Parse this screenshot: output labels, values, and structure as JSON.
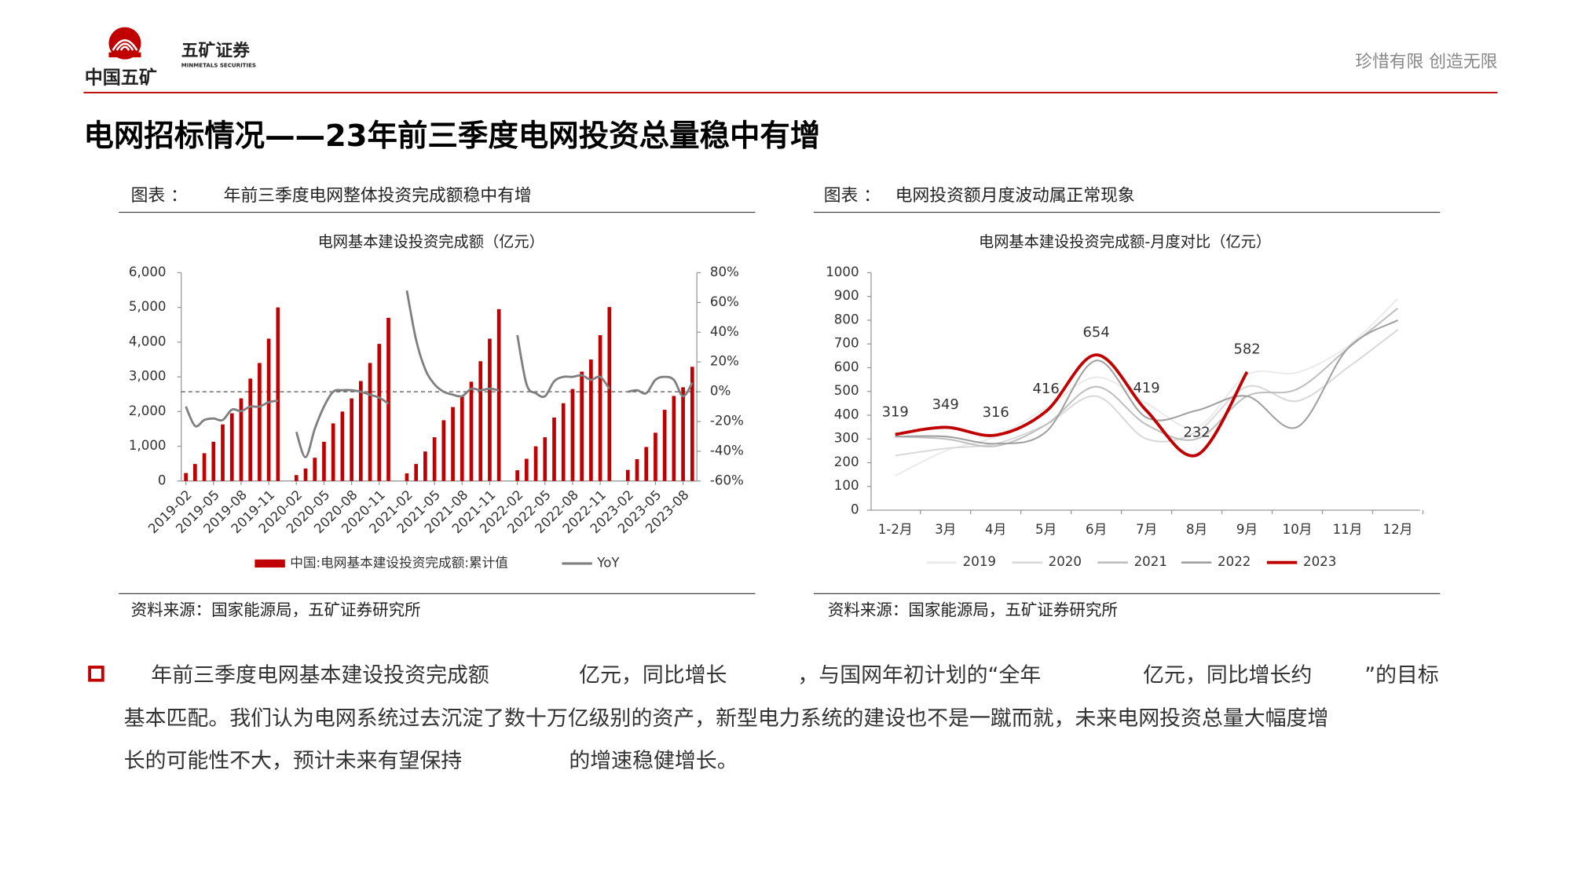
{
  "header": {
    "logo_text": "中国五矿",
    "brand": "五矿证券",
    "brand_en": "MINMETALS SECURITIES",
    "slogan": "珍惜有限  创造无限"
  },
  "title": "电网招标情况——23年前三季度电网投资总量稳中有增",
  "figures": [
    {
      "label": "图表 ：",
      "caption": "年前三季度电网整体投资完成额稳中有增",
      "source": "资料来源：国家能源局，五矿证券研究所"
    },
    {
      "label": "图表 ：",
      "caption": "电网投资额月度波动属正常现象",
      "source": "资料来源：国家能源局，五矿证券研究所"
    }
  ],
  "chart_data": [
    {
      "type": "bar",
      "title": "电网基本建设投资完成额（亿元）",
      "categories": [
        "2019-02",
        null,
        null,
        "2019-05",
        null,
        null,
        "2019-08",
        null,
        null,
        "2019-11",
        null,
        null,
        "2020-02",
        null,
        null,
        "2020-05",
        null,
        null,
        "2020-08",
        null,
        null,
        "2020-11",
        null,
        null,
        "2021-02",
        null,
        null,
        "2021-05",
        null,
        null,
        "2021-08",
        null,
        null,
        "2021-11",
        null,
        null,
        "2022-02",
        null,
        null,
        "2022-05",
        null,
        null,
        "2022-08",
        null,
        null,
        "2022-11",
        null,
        null,
        "2023-02",
        null,
        null,
        "2023-05",
        null,
        null,
        "2023-08",
        null
      ],
      "series": [
        {
          "name": "中国:电网基本建设投资完成额:累计值",
          "type": "bar",
          "color": "#c00000",
          "values": [
            230,
            490,
            800,
            1130,
            1630,
            1950,
            2380,
            2950,
            3400,
            4100,
            5000,
            null,
            170,
            360,
            670,
            1130,
            1660,
            2000,
            2380,
            2880,
            3400,
            3950,
            4700,
            null,
            220,
            490,
            850,
            1260,
            1750,
            2130,
            2440,
            2860,
            3450,
            4100,
            4950,
            null,
            310,
            640,
            1000,
            1260,
            1830,
            2240,
            2650,
            3150,
            3500,
            4200,
            5010,
            null,
            320,
            630,
            980,
            1390,
            2050,
            2450,
            2700,
            3290
          ]
        },
        {
          "name": "YoY",
          "type": "line",
          "axis": "y2",
          "color": "#7f7f7f",
          "smooth": true,
          "values": [
            -10,
            -23,
            -19,
            -18,
            -19,
            -12,
            -13,
            -10,
            -10,
            -7,
            -6,
            null,
            -27,
            -44,
            -25,
            -10,
            0,
            1,
            1,
            0,
            -2,
            -4,
            -8,
            null,
            68,
            35,
            15,
            5,
            0,
            -2,
            -3,
            2,
            1,
            2,
            1,
            null,
            38,
            5,
            -1,
            -3,
            7,
            10,
            10,
            11,
            8,
            10,
            2,
            null,
            0,
            1,
            -1,
            8,
            10,
            8,
            -3,
            6
          ]
        }
      ],
      "ylim": [
        0,
        6000
      ],
      "yticks": [
        0,
        {
          "value": 1000,
          "label": "1,000"
        },
        {
          "value": 2000,
          "label": "2,000"
        },
        {
          "value": 3000,
          "label": "3,000"
        },
        {
          "value": 4000,
          "label": "4,000"
        },
        {
          "value": 5000,
          "label": "5,000"
        },
        {
          "value": 6000,
          "label": "6,000"
        }
      ],
      "y2lim": [
        -60,
        80
      ],
      "y2ticks": [
        {
          "value": -60,
          "label": "-60%"
        },
        {
          "value": -40,
          "label": "-40%"
        },
        {
          "value": -20,
          "label": "-20%"
        },
        {
          "value": 0,
          "label": "0%"
        },
        {
          "value": 20,
          "label": "20%"
        },
        {
          "value": 40,
          "label": "40%"
        },
        {
          "value": 60,
          "label": "60%"
        },
        {
          "value": 80,
          "label": "80%"
        }
      ],
      "y2_zero_line": true,
      "grid": false,
      "legend": "bottom"
    },
    {
      "type": "line",
      "title": "电网基本建设投资完成额-月度对比（亿元）",
      "categories": [
        "1-2月",
        "3月",
        "4月",
        "5月",
        "6月",
        "7月",
        "8月",
        "9月",
        "10月",
        "11月",
        "12月"
      ],
      "series": [
        {
          "name": "2019",
          "color": "#ebebeb",
          "values": [
            145,
            250,
            310,
            430,
            560,
            450,
            350,
            570,
            580,
            690,
            890
          ]
        },
        {
          "name": "2020",
          "color": "#d9d9d9",
          "values": [
            230,
            260,
            280,
            360,
            480,
            300,
            330,
            520,
            460,
            600,
            760
          ]
        },
        {
          "name": "2021",
          "color": "#bfbfbf",
          "values": [
            310,
            300,
            270,
            360,
            520,
            360,
            300,
            480,
            510,
            680,
            850
          ]
        },
        {
          "name": "2022",
          "color": "#a0a0a0",
          "values": [
            310,
            310,
            280,
            330,
            630,
            390,
            420,
            480,
            350,
            680,
            800
          ]
        },
        {
          "name": "2023",
          "color": "#c00000",
          "width": 3,
          "data_labels": true,
          "values": [
            319,
            349,
            316,
            416,
            654,
            419,
            232,
            582,
            null,
            null,
            null
          ]
        }
      ],
      "smooth": true,
      "ylim": [
        0,
        1000
      ],
      "yticks": [
        0,
        100,
        200,
        300,
        400,
        500,
        600,
        700,
        800,
        900,
        1000
      ],
      "grid": false,
      "legend": "bottom"
    }
  ],
  "body": {
    "lines": [
      [
        "年前三季度电网基本建设投资完成额",
        "亿元，同比增长",
        "，与国网年初计划的“全年",
        "亿元，同比增长约",
        "”的目标"
      ],
      [
        "基本匹配。我们认为电网系统过去沉淀了数十万亿级别的资产，新型电力系统的建设也不是一蹴而就，未来电网投资总量大幅度增"
      ],
      [
        "长的可能性不大，预计未来有望保持",
        "的增速稳健增长。"
      ]
    ]
  }
}
